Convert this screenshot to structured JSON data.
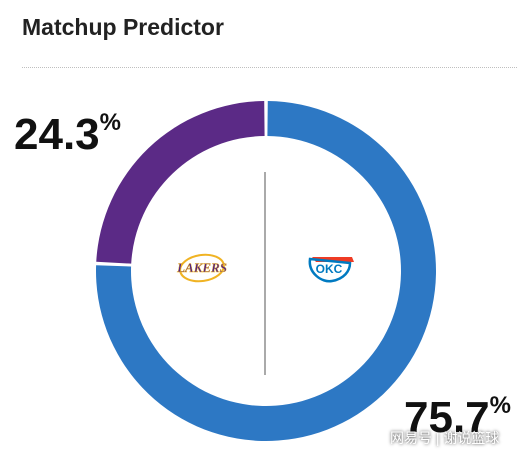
{
  "header": {
    "title": "Matchup Predictor"
  },
  "chart_data": {
    "type": "pie",
    "title": "Matchup Predictor",
    "slices": [
      {
        "name": "LAKERS",
        "value": 24.3,
        "label": "24.3",
        "color": "#5b2a86"
      },
      {
        "name": "OKC",
        "value": 75.7,
        "label": "75.7",
        "color": "#2d78c4"
      }
    ],
    "percent_sign": "%"
  },
  "logos": {
    "away": {
      "text": "LAKERS",
      "color": "#552583",
      "accent": "#f0b323",
      "icon": "lakers-logo"
    },
    "home": {
      "text": "OKC",
      "color": "#007ac1",
      "accent": "#ef3b24",
      "icon": "thunder-logo"
    }
  },
  "watermark": "网易号 | 谢说篮球"
}
